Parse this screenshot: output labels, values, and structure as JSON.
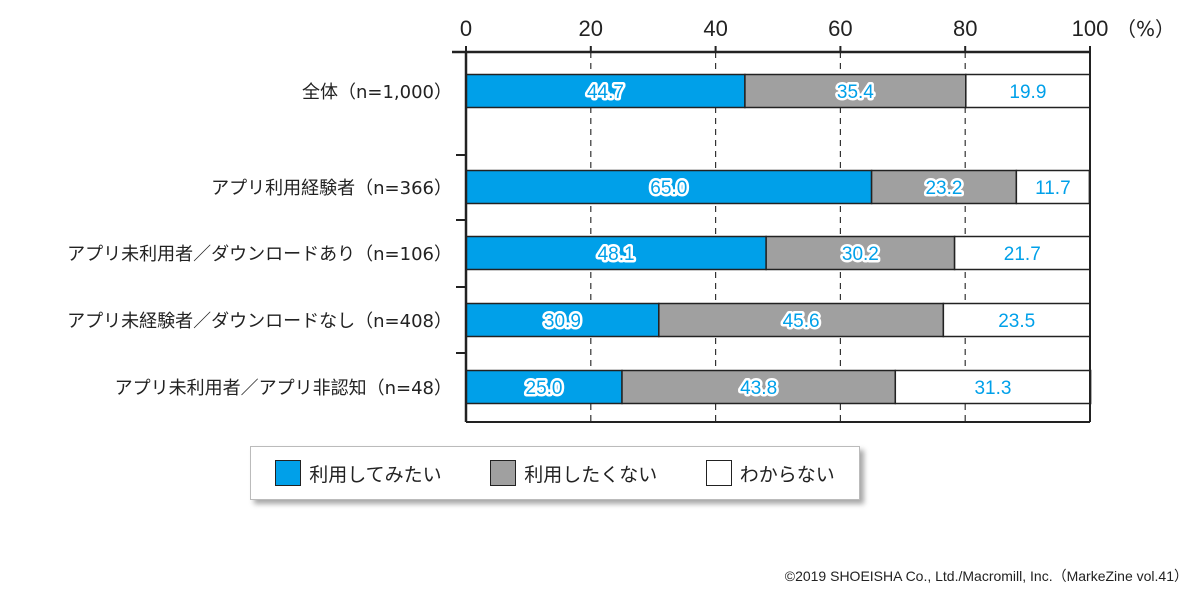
{
  "chart_data": {
    "type": "bar",
    "orientation": "horizontal",
    "stacked": true,
    "xlim": [
      0,
      100
    ],
    "xticks": [
      0,
      20,
      40,
      60,
      80,
      100
    ],
    "unit_label": "（%）",
    "categories": [
      "全体（n=1,000）",
      "アプリ利用経験者（n=366）",
      "アプリ未利用者／ダウンロードあり（n=106）",
      "アプリ未経験者／ダウンロードなし（n=408）",
      "アプリ未利用者／アプリ非認知（n=48）"
    ],
    "series": [
      {
        "name": "利用してみたい",
        "color": "#00a0e9",
        "values": [
          44.7,
          65.0,
          48.1,
          30.9,
          25.0
        ]
      },
      {
        "name": "利用したくない",
        "color": "#a0a0a0",
        "values": [
          35.4,
          23.2,
          30.2,
          45.6,
          43.8
        ]
      },
      {
        "name": "わからない",
        "color": "#ffffff",
        "values": [
          19.9,
          11.7,
          21.7,
          23.5,
          31.3
        ]
      }
    ],
    "legend_position": "bottom"
  },
  "copyright": "©2019 SHOEISHA Co., Ltd./Macromill, Inc.（MarkeZine vol.41）"
}
